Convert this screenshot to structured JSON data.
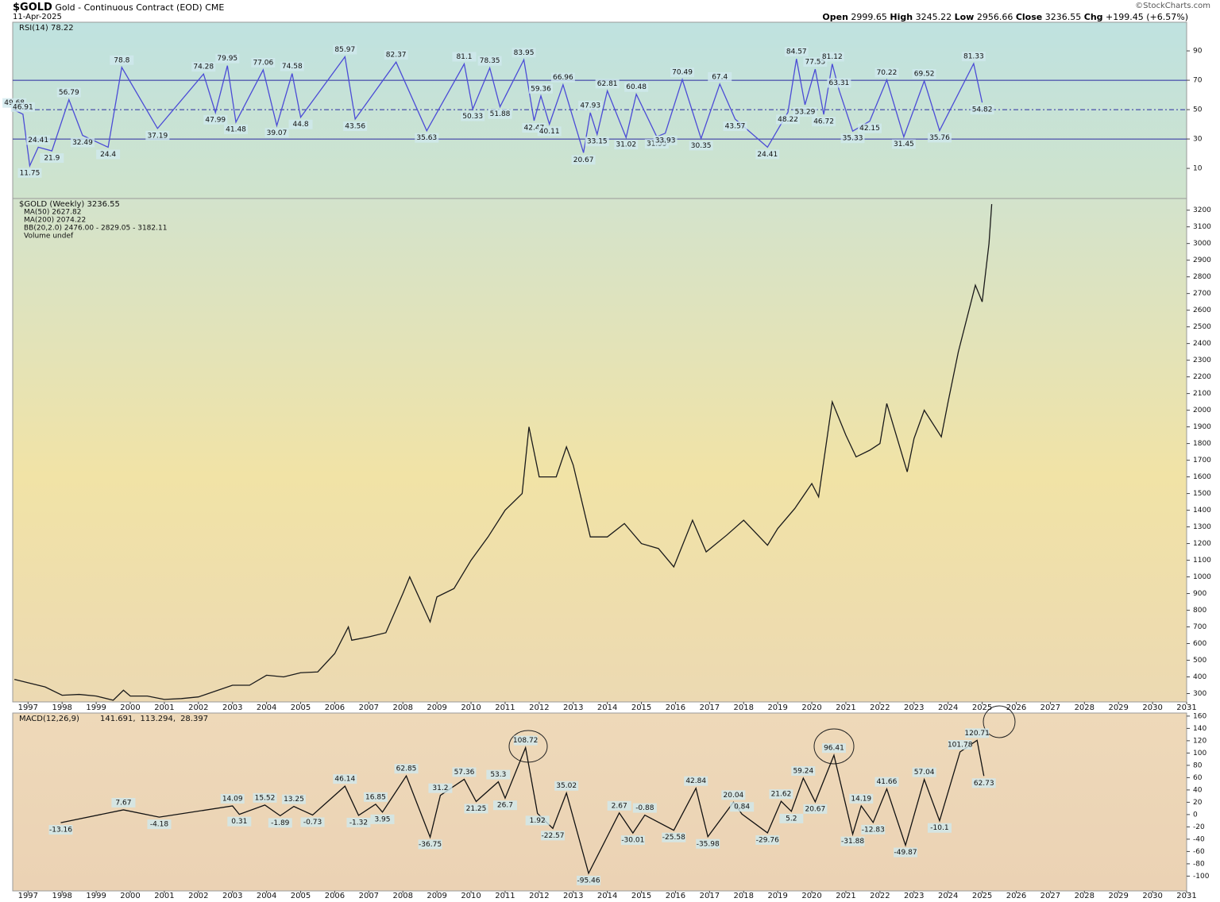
{
  "header": {
    "symbol": "$GOLD",
    "description": "Gold - Continuous Contract (EOD)",
    "exchange": "CME",
    "date": "11-Apr-2025",
    "open_label": "Open",
    "open": "2999.65",
    "high_label": "High",
    "high": "3245.22",
    "low_label": "Low",
    "low": "2956.66",
    "close_label": "Close",
    "close": "3236.55",
    "chg_label": "Chg",
    "chg": "+199.45 (+6.57%)",
    "credit": "©StockCharts.com"
  },
  "chart_data": [
    {
      "type": "line",
      "title": "RSI(14) 78.22",
      "data_labels": true,
      "xlim": [
        1996.55,
        2031
      ],
      "ylim": [
        -10.5,
        109.5
      ],
      "yticks": [
        10,
        30,
        50,
        70,
        90
      ],
      "ref_lines": [
        30,
        50,
        70
      ],
      "x": [
        1996.6,
        1996.85,
        1997.05,
        1997.3,
        1997.7,
        1998.2,
        1998.6,
        1999.35,
        1999.75,
        2000.8,
        2002.15,
        2002.5,
        2002.85,
        2003.1,
        2003.9,
        2004.3,
        2004.75,
        2005.0,
        2006.3,
        2006.6,
        2007.8,
        2008.7,
        2009.8,
        2010.05,
        2010.55,
        2010.85,
        2011.55,
        2011.85,
        2012.05,
        2012.3,
        2012.7,
        2013.3,
        2013.5,
        2013.7,
        2014.0,
        2014.55,
        2014.85,
        2015.45,
        2015.7,
        2016.2,
        2016.75,
        2017.3,
        2017.75,
        2018.7,
        2019.3,
        2019.55,
        2019.8,
        2020.1,
        2020.35,
        2020.6,
        2020.8,
        2021.2,
        2021.7,
        2022.2,
        2022.7,
        2023.3,
        2023.75,
        2024.75,
        2025.0
      ],
      "series": [
        {
          "name": "RSI(14)",
          "color": "#4b4bd6",
          "values": [
            49.68,
            46.91,
            11.75,
            24.41,
            21.9,
            56.79,
            32.49,
            24.4,
            78.8,
            37.19,
            74.28,
            47.99,
            79.95,
            41.48,
            77.06,
            39.07,
            74.58,
            44.8,
            85.97,
            43.56,
            82.37,
            35.63,
            81.1,
            50.33,
            78.35,
            51.88,
            83.95,
            42.47,
            59.36,
            40.11,
            66.96,
            20.67,
            47.93,
            33.15,
            62.81,
            31.02,
            60.48,
            31.55,
            33.93,
            70.49,
            30.35,
            67.4,
            43.57,
            24.41,
            48.22,
            84.57,
            53.29,
            77.55,
            46.72,
            81.12,
            63.31,
            35.33,
            42.15,
            70.22,
            31.45,
            69.52,
            35.76,
            81.33,
            54.82
          ]
        }
      ]
    },
    {
      "type": "line",
      "title": "$GOLD (Weekly) 3236.55",
      "overlays": [
        {
          "label": "MA(50) 2627.82",
          "color": "#1a2a9a"
        },
        {
          "label": "MA(200) 2074.22",
          "color": "#d01010"
        },
        {
          "label": "BB(20,2.0) 2476.00 - 2829.05 - 3182.11",
          "color": "#2a7a2a"
        },
        {
          "label": "Volume undef",
          "color": "#2a7a2a"
        }
      ],
      "data_labels": false,
      "xlim": [
        1996.55,
        2031
      ],
      "ylim": [
        250,
        3270
      ],
      "yticks": [
        300,
        400,
        500,
        600,
        700,
        800,
        900,
        1000,
        1100,
        1200,
        1300,
        1400,
        1500,
        1600,
        1700,
        1800,
        1900,
        2000,
        2100,
        2200,
        2300,
        2400,
        2500,
        2600,
        2700,
        2800,
        2900,
        3000,
        3100,
        3200
      ],
      "xticks": [
        1997,
        1998,
        1999,
        2000,
        2001,
        2002,
        2003,
        2004,
        2005,
        2006,
        2007,
        2008,
        2009,
        2010,
        2011,
        2012,
        2013,
        2014,
        2015,
        2016,
        2017,
        2018,
        2019,
        2020,
        2021,
        2022,
        2023,
        2024,
        2025,
        2026,
        2027,
        2028,
        2029,
        2030,
        2031
      ],
      "x": [
        1996.6,
        1997,
        1997.5,
        1998,
        1998.5,
        1999,
        1999.5,
        1999.8,
        2000,
        2000.5,
        2001,
        2001.5,
        2002,
        2002.5,
        2003,
        2003.5,
        2004,
        2004.5,
        2005,
        2005.5,
        2006,
        2006.4,
        2006.5,
        2007,
        2007.5,
        2008,
        2008.2,
        2008.8,
        2009,
        2009.5,
        2010,
        2010.5,
        2011,
        2011.5,
        2011.7,
        2012,
        2012.5,
        2012.8,
        2013,
        2013.5,
        2014,
        2014.5,
        2015,
        2015.5,
        2015.95,
        2016.5,
        2016.9,
        2017.5,
        2018,
        2018.7,
        2019,
        2019.5,
        2020,
        2020.2,
        2020.6,
        2021,
        2021.3,
        2021.7,
        2022,
        2022.2,
        2022.8,
        2023,
        2023.3,
        2023.8,
        2024,
        2024.3,
        2024.8,
        2025,
        2025.2,
        2025.28
      ],
      "series": [
        {
          "name": "$GOLD",
          "color": "#1a1a1a",
          "values": [
            385,
            365,
            340,
            290,
            295,
            285,
            260,
            320,
            285,
            285,
            265,
            270,
            280,
            315,
            350,
            350,
            410,
            400,
            425,
            430,
            540,
            700,
            620,
            640,
            665,
            900,
            1000,
            730,
            880,
            930,
            1100,
            1240,
            1400,
            1500,
            1900,
            1600,
            1600,
            1780,
            1670,
            1240,
            1240,
            1320,
            1200,
            1170,
            1060,
            1340,
            1150,
            1250,
            1340,
            1190,
            1290,
            1410,
            1560,
            1480,
            2050,
            1850,
            1720,
            1760,
            1800,
            2040,
            1630,
            1830,
            2000,
            1840,
            2050,
            2350,
            2750,
            2650,
            3000,
            3236.55
          ]
        }
      ]
    },
    {
      "type": "line",
      "title": "MACD(12,26,9)",
      "legend_values": [
        {
          "label": "141.691,",
          "color": "#111111"
        },
        {
          "label": "113.294,",
          "color": "#7a3fc0"
        },
        {
          "label": "28.397",
          "color": "#6aa84f"
        }
      ],
      "data_labels": true,
      "xlim": [
        1996.55,
        2031
      ],
      "ylim": [
        -124,
        165
      ],
      "yticks": [
        -100,
        -80,
        -60,
        -40,
        -20,
        0,
        20,
        40,
        60,
        80,
        100,
        120,
        140,
        160
      ],
      "xticks": [
        1997,
        1998,
        1999,
        2000,
        2001,
        2002,
        2003,
        2004,
        2005,
        2006,
        2007,
        2008,
        2009,
        2010,
        2011,
        2012,
        2013,
        2014,
        2015,
        2016,
        2017,
        2018,
        2019,
        2020,
        2021,
        2022,
        2023,
        2024,
        2025,
        2026,
        2027,
        2028,
        2029,
        2030,
        2031
      ],
      "x": [
        1997.96,
        1999.8,
        2000.85,
        2003.0,
        2003.2,
        2003.95,
        2004.4,
        2004.8,
        2005.35,
        2006.3,
        2006.7,
        2007.2,
        2007.4,
        2008.1,
        2008.8,
        2009.1,
        2009.8,
        2010.15,
        2010.8,
        2011.0,
        2011.6,
        2011.95,
        2012.4,
        2012.8,
        2013.45,
        2014.35,
        2014.75,
        2015.1,
        2015.95,
        2016.6,
        2016.95,
        2017.7,
        2017.95,
        2018.7,
        2019.1,
        2019.4,
        2019.75,
        2020.1,
        2020.65,
        2021.2,
        2021.45,
        2021.8,
        2022.2,
        2022.75,
        2023.3,
        2023.75,
        2024.35,
        2024.85,
        2025.05
      ],
      "series": [
        {
          "name": "MACD",
          "color": "#111111",
          "values": [
            -13.16,
            7.67,
            -4.18,
            14.09,
            0.31,
            15.52,
            -1.89,
            13.25,
            -0.73,
            46.14,
            -1.32,
            16.85,
            3.95,
            62.85,
            -36.75,
            31.2,
            57.36,
            21.25,
            53.3,
            26.7,
            108.72,
            1.92,
            -22.57,
            35.02,
            -95.46,
            2.67,
            -30.01,
            -0.88,
            -25.58,
            42.84,
            -35.98,
            20.04,
            0.84,
            -29.76,
            21.62,
            5.2,
            59.24,
            20.67,
            96.41,
            -31.88,
            14.19,
            -12.83,
            41.66,
            -49.87,
            57.04,
            -10.1,
            101.78,
            120.71,
            62.73
          ]
        }
      ]
    }
  ]
}
